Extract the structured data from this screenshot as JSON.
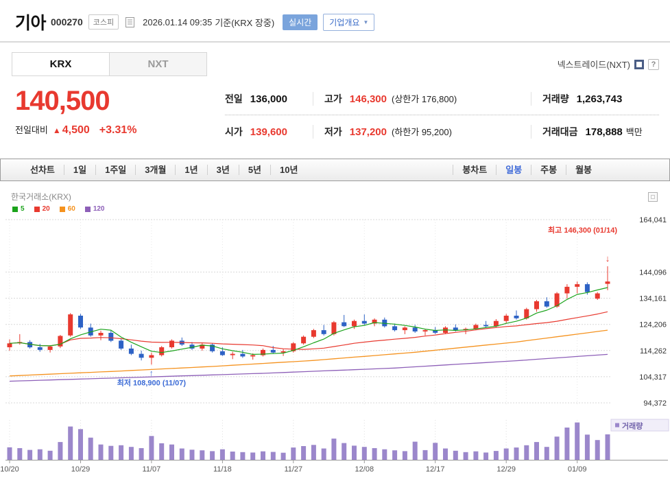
{
  "colors": {
    "accent_red": "#e8392f",
    "accent_blue": "#3f6ad8"
  },
  "header": {
    "stock_name": "기아",
    "stock_code": "000270",
    "market_badge": "코스피",
    "date_text": "2026.01.14 09:35",
    "date_suffix": "기준(KRX 장중)",
    "realtime_badge": "실시간",
    "company_overview": "기업개요",
    "caret": "▼"
  },
  "market_tabs": {
    "krx": "KRX",
    "nxt": "NXT",
    "nxt_link": "넥스트레이드(NXT)",
    "help": "?"
  },
  "price_summary": {
    "current": "140,500",
    "change_label": "전일대비",
    "change_arrow": "▲",
    "change_value": "4,500",
    "change_rate": "+3.31%",
    "cells": {
      "prev_label": "전일",
      "prev_value": "136,000",
      "high_label": "고가",
      "high_value": "146,300",
      "upper_limit": "(상한가 176,800)",
      "volume_label": "거래량",
      "volume_value": "1,263,743",
      "open_label": "시가",
      "open_value": "139,600",
      "low_label": "저가",
      "low_value": "137,200",
      "lower_limit": "(하한가 95,200)",
      "amount_label": "거래대금",
      "amount_value": "178,888",
      "amount_unit": "백만"
    }
  },
  "period_toolbar": {
    "left": [
      "선차트",
      "1일",
      "1주일",
      "3개월",
      "1년",
      "3년",
      "5년",
      "10년"
    ],
    "right": [
      "봉차트",
      "일봉",
      "주봉",
      "월봉"
    ],
    "selected": "일봉"
  },
  "chart": {
    "exchange_label": "한국거래소(KRX)",
    "legend": [
      {
        "label": "5",
        "color": "#1ba31b"
      },
      {
        "label": "20",
        "color": "#e8392f"
      },
      {
        "label": "60",
        "color": "#f5921e"
      },
      {
        "label": "120",
        "color": "#8d5fb8"
      }
    ],
    "volume_legend": "거래량"
  },
  "chart_data": {
    "type": "candlestick",
    "title": "기아(000270) 일봉 차트",
    "y_range": [
      94372,
      164041
    ],
    "price_axis": {
      "top_value": 164041,
      "bottom_value": 94372
    },
    "y_axis_labels": [
      {
        "text": "164,041",
        "value": 164041
      },
      {
        "text": "144,096",
        "value": 144096
      },
      {
        "text": "134,161",
        "value": 134161
      },
      {
        "text": "124,206",
        "value": 124206
      },
      {
        "text": "114,262",
        "value": 114262
      },
      {
        "text": "104,317",
        "value": 104317
      },
      {
        "text": "94,372",
        "value": 94372
      }
    ],
    "x_ticks": [
      {
        "label": "10/20",
        "index": 0
      },
      {
        "label": "10/29",
        "index": 7
      },
      {
        "label": "11/07",
        "index": 14
      },
      {
        "label": "11/18",
        "index": 21
      },
      {
        "label": "11/27",
        "index": 28
      },
      {
        "label": "12/08",
        "index": 35
      },
      {
        "label": "12/17",
        "index": 42
      },
      {
        "label": "12/29",
        "index": 49
      },
      {
        "label": "01/09",
        "index": 56
      }
    ],
    "annotations": {
      "high": {
        "text": "최고 146,300 (01/14)",
        "value": 146300,
        "date": "01/14",
        "color": "#e8392f"
      },
      "low": {
        "text": "최저 108,900 (11/07)",
        "value": 108900,
        "date": "11/07",
        "color": "#3b6bd6"
      }
    },
    "candle_format": [
      "date",
      "open",
      "high",
      "low",
      "close",
      "volume"
    ],
    "candles": [
      [
        "10/20",
        115500,
        118500,
        114200,
        117000,
        620000
      ],
      [
        "10/21",
        117000,
        120500,
        116500,
        117500,
        580000
      ],
      [
        "10/22",
        117500,
        118200,
        115000,
        115500,
        490000
      ],
      [
        "10/23",
        115500,
        116800,
        113800,
        114500,
        520000
      ],
      [
        "10/24",
        114500,
        116200,
        113500,
        115800,
        450000
      ],
      [
        "10/27",
        115800,
        120200,
        115200,
        119800,
        880000
      ],
      [
        "10/28",
        120000,
        128500,
        119500,
        128000,
        1650000
      ],
      [
        "10/29",
        127500,
        128200,
        122500,
        123000,
        1520000
      ],
      [
        "10/30",
        123000,
        124500,
        119500,
        120000,
        1100000
      ],
      [
        "10/31",
        120000,
        121800,
        118200,
        121000,
        760000
      ],
      [
        "11/03",
        121000,
        122000,
        117500,
        118000,
        690000
      ],
      [
        "11/04",
        118000,
        119000,
        114500,
        115000,
        720000
      ],
      [
        "11/05",
        115000,
        116500,
        112500,
        113000,
        640000
      ],
      [
        "11/06",
        113000,
        114200,
        110500,
        111500,
        580000
      ],
      [
        "11/07",
        111500,
        113500,
        108900,
        112500,
        1180000
      ],
      [
        "11/10",
        112500,
        116000,
        112000,
        115500,
        820000
      ],
      [
        "11/11",
        115500,
        118500,
        115000,
        118000,
        760000
      ],
      [
        "11/12",
        118000,
        119200,
        116000,
        116500,
        560000
      ],
      [
        "11/13",
        116500,
        117500,
        114500,
        115000,
        500000
      ],
      [
        "11/14",
        115000,
        117200,
        114200,
        116500,
        470000
      ],
      [
        "11/17",
        116500,
        117000,
        113500,
        114000,
        430000
      ],
      [
        "11/18",
        114000,
        115500,
        112200,
        112500,
        520000
      ],
      [
        "11/19",
        112500,
        113800,
        111000,
        113000,
        410000
      ],
      [
        "11/20",
        113000,
        114500,
        111500,
        112000,
        380000
      ],
      [
        "11/21",
        112000,
        113200,
        110800,
        112500,
        360000
      ],
      [
        "11/24",
        112500,
        115000,
        112000,
        114500,
        420000
      ],
      [
        "11/25",
        114500,
        116000,
        113000,
        113500,
        390000
      ],
      [
        "11/26",
        113500,
        114800,
        112200,
        114000,
        350000
      ],
      [
        "11/27",
        114000,
        117500,
        113500,
        117000,
        610000
      ],
      [
        "11/28",
        117000,
        120000,
        116500,
        119500,
        680000
      ],
      [
        "12/01",
        119500,
        122500,
        119000,
        122000,
        740000
      ],
      [
        "12/02",
        122000,
        124000,
        120000,
        120500,
        560000
      ],
      [
        "12/03",
        120500,
        125500,
        120000,
        125000,
        1050000
      ],
      [
        "12/04",
        125000,
        127800,
        123200,
        123500,
        830000
      ],
      [
        "12/05",
        123500,
        126000,
        122500,
        125500,
        700000
      ],
      [
        "12/08",
        125500,
        128000,
        124000,
        124500,
        640000
      ],
      [
        "12/09",
        124500,
        126500,
        123500,
        126000,
        580000
      ],
      [
        "12/10",
        126000,
        126800,
        123000,
        123500,
        520000
      ],
      [
        "12/11",
        123500,
        124500,
        121500,
        122000,
        470000
      ],
      [
        "12/12",
        122000,
        123500,
        120500,
        123000,
        430000
      ],
      [
        "12/15",
        123000,
        124000,
        121000,
        121500,
        900000
      ],
      [
        "12/16",
        121500,
        122500,
        120000,
        122000,
        480000
      ],
      [
        "12/17",
        122000,
        123200,
        120500,
        121000,
        840000
      ],
      [
        "12/18",
        121000,
        123500,
        120500,
        123000,
        560000
      ],
      [
        "12/19",
        123000,
        124200,
        121500,
        122000,
        450000
      ],
      [
        "12/22",
        122000,
        123000,
        120500,
        122500,
        380000
      ],
      [
        "12/23",
        122500,
        124500,
        122000,
        124000,
        420000
      ],
      [
        "12/24",
        124000,
        125500,
        123000,
        123500,
        360000
      ],
      [
        "12/26",
        123500,
        126200,
        123000,
        125500,
        440000
      ],
      [
        "12/29",
        125500,
        128200,
        124500,
        127500,
        560000
      ],
      [
        "12/30",
        127500,
        129500,
        126000,
        126500,
        610000
      ],
      [
        "01/02",
        126500,
        130500,
        126000,
        130000,
        720000
      ],
      [
        "01/05",
        130000,
        133500,
        129000,
        133000,
        880000
      ],
      [
        "01/06",
        133000,
        134500,
        130500,
        131000,
        640000
      ],
      [
        "01/07",
        131000,
        136500,
        130500,
        136000,
        1150000
      ],
      [
        "01/08",
        136000,
        139500,
        134000,
        138500,
        1600000
      ],
      [
        "01/09",
        138500,
        140500,
        136000,
        139500,
        1850000
      ],
      [
        "01/12",
        139500,
        140200,
        135500,
        136500,
        1250000
      ],
      [
        "01/13",
        134000,
        136500,
        133500,
        136000,
        980000
      ],
      [
        "01/14",
        139600,
        146300,
        137200,
        140500,
        1263743
      ]
    ],
    "moving_averages": {
      "ma5": {
        "color": "#1ba31b",
        "window": 5
      },
      "ma20": {
        "color": "#e8392f",
        "window": 20
      },
      "ma60": {
        "color": "#f5921e",
        "control_points": [
          [
            0,
            104600
          ],
          [
            10,
            106300
          ],
          [
            20,
            108200
          ],
          [
            30,
            110500
          ],
          [
            40,
            113600
          ],
          [
            50,
            117500
          ],
          [
            59,
            122000
          ]
        ]
      },
      "ma120": {
        "color": "#8d5fb8",
        "control_points": [
          [
            0,
            102600
          ],
          [
            12,
            104000
          ],
          [
            25,
            105600
          ],
          [
            38,
            107600
          ],
          [
            50,
            110400
          ],
          [
            59,
            112800
          ]
        ]
      }
    },
    "colors": {
      "up": "#e8392f",
      "down": "#2d62c5",
      "volume": "#9b87cb"
    }
  }
}
